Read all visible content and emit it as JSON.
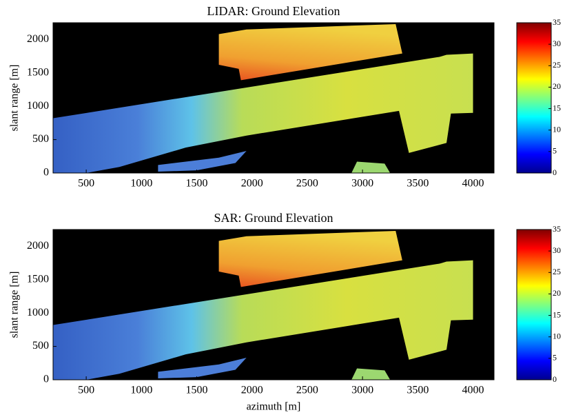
{
  "chart_data": [
    {
      "type": "heatmap",
      "title": "LIDAR: Ground Elevation",
      "ylabel": "slant range [m]",
      "xlim": [
        200,
        4190
      ],
      "ylim": [
        0,
        2250
      ],
      "xticks": [
        500,
        1000,
        1500,
        2000,
        2500,
        3000,
        3500,
        4000
      ],
      "yticks": [
        0,
        500,
        1000,
        1500,
        2000
      ],
      "colormap": "jet",
      "clim": [
        0,
        35
      ],
      "cticks": [
        0,
        5,
        10,
        15,
        20,
        25,
        30,
        35
      ]
    },
    {
      "type": "heatmap",
      "title": "SAR: Ground Elevation",
      "ylabel": "slant range [m]",
      "xlabel": "azimuth [m]",
      "xlim": [
        200,
        4190
      ],
      "ylim": [
        0,
        2250
      ],
      "xticks": [
        500,
        1000,
        1500,
        2000,
        2500,
        3000,
        3500,
        4000
      ],
      "yticks": [
        0,
        500,
        1000,
        1500,
        2000
      ],
      "colormap": "jet",
      "clim": [
        0,
        35
      ],
      "cticks": [
        0,
        5,
        10,
        15,
        20,
        25,
        30,
        35
      ]
    }
  ]
}
